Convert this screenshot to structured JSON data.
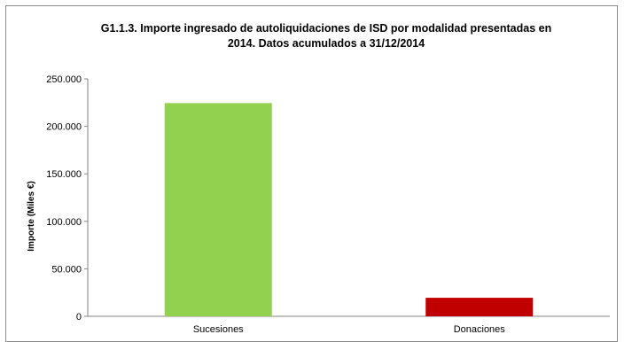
{
  "chart_data": {
    "type": "bar",
    "title_lines": [
      "G1.1.3. Importe ingresado de autoliquidaciones de ISD por modalidad presentadas en",
      "2014. Datos acumulados a 31/12/2014"
    ],
    "ylabel": "Importe (Miles €)",
    "xlabel": "",
    "categories": [
      "Sucesiones",
      "Donaciones"
    ],
    "values": [
      224500,
      19500
    ],
    "bar_colors": [
      "#92d050",
      "#c00000"
    ],
    "ylim": [
      0,
      250000
    ],
    "yticks": [
      0,
      50000,
      100000,
      150000,
      200000,
      250000
    ],
    "ytick_labels": [
      "0",
      "50.000",
      "100.000",
      "150.000",
      "200.000",
      "250.000"
    ],
    "grid": false,
    "legend": "none"
  }
}
